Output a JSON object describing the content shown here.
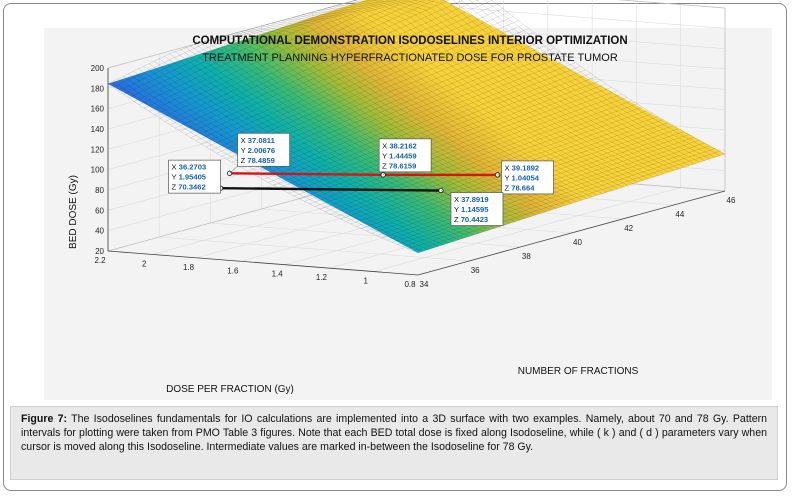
{
  "chart_data": {
    "type": "surface3d",
    "title": "COMPUTATIONAL DEMONSTRATION ISODOSELINES INTERIOR OPTIMIZATION",
    "subtitle": "TREATMENT PLANNING HYPERFRACTIONATED DOSE FOR PROSTATE TUMOR",
    "xlabel": "NUMBER OF FRACTIONS",
    "ylabel": "DOSE PER FRACTION (Gy)",
    "zlabel": "BED DOSE (Gy)",
    "xlim": [
      34,
      46
    ],
    "ylim": [
      0.8,
      2.2
    ],
    "zlim": [
      20,
      200
    ],
    "x_ticks": [
      "34",
      "36",
      "38",
      "40",
      "42",
      "44",
      "46"
    ],
    "y_ticks": [
      "0.8",
      "1",
      "1.2",
      "1.4",
      "1.6",
      "1.8",
      "2",
      "2.2"
    ],
    "z_ticks": [
      "20",
      "40",
      "60",
      "80",
      "100",
      "120",
      "140",
      "160",
      "180",
      "200"
    ],
    "colormap": "parula",
    "isodoselines": [
      {
        "color": "#e01010",
        "points": [
          [
            37.0811,
            2.00676,
            78.4859
          ],
          [
            38.2162,
            1.44459,
            78.6159
          ],
          [
            39.1892,
            1.04054,
            78.664
          ]
        ]
      },
      {
        "color": "#111111",
        "points": [
          [
            36.2703,
            1.95405,
            70.3462
          ],
          [
            37.8919,
            1.14595,
            70.4423
          ]
        ]
      }
    ],
    "datatips": [
      {
        "x": "36.2703",
        "y": "1.95405",
        "z": "70.3462"
      },
      {
        "x": "37.0811",
        "y": "2.00676",
        "z": "78.4859"
      },
      {
        "x": "38.2162",
        "y": "1.44459",
        "z": "78.6159"
      },
      {
        "x": "39.1892",
        "y": "1.04054",
        "z": "78.664"
      },
      {
        "x": "37.8919",
        "y": "1.14595",
        "z": "70.4423"
      }
    ]
  },
  "caption": {
    "label": "Figure 7:",
    "text": " The Isodoselines fundamentals for IO calculations are implemented into a 3D surface with two examples. Namely, about 70 and 78 Gy. Pattern intervals for plotting were taken from PMO Table 3 figures. Note that each BED total dose is fixed along Isodoseline, while ( k ) and ( d ) parameters vary when cursor is moved along this Isodoseline. Intermediate values are marked in-between the Isodoseline for 78 Gy."
  },
  "datatip_keys": {
    "x": "X",
    "y": "Y",
    "z": "Z"
  }
}
